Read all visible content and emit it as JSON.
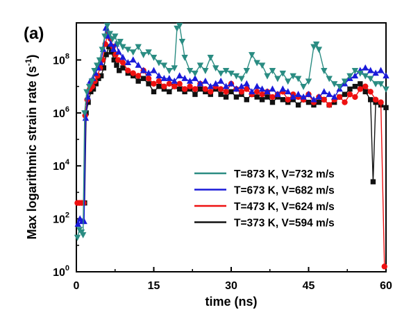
{
  "panel_label": "(a)",
  "chart_data": {
    "type": "scatter",
    "title": "",
    "xlabel": "time (ns)",
    "ylabel_main": "Max logarithmic  strain rate (s",
    "ylabel_sup": "-1",
    "ylabel_close": ")",
    "xlim": [
      0,
      60
    ],
    "ylim_log10": [
      0,
      9.4
    ],
    "y_scale": "log",
    "x_ticks": [
      0,
      15,
      30,
      45,
      60
    ],
    "x_tick_labels": [
      "0",
      "15",
      "30",
      "45",
      "60"
    ],
    "y_ticks": [
      0,
      2,
      4,
      6,
      8
    ],
    "y_tick_labels": [
      {
        "base": "10",
        "exp": "0"
      },
      {
        "base": "10",
        "exp": "2"
      },
      {
        "base": "10",
        "exp": "4"
      },
      {
        "base": "10",
        "exp": "6"
      },
      {
        "base": "10",
        "exp": "8"
      }
    ],
    "legend_position": "bottom-right",
    "series": [
      {
        "name": "T=873 K, V=732 m/s",
        "color": "#2a8c82",
        "marker": "triangle-down",
        "x": [
          0.2,
          0.6,
          1.0,
          1.3,
          1.6,
          2.0,
          2.5,
          3.0,
          3.5,
          4.0,
          4.5,
          5.0,
          5.5,
          6.0,
          6.5,
          7.0,
          7.5,
          8.0,
          8.5,
          9.0,
          10,
          11,
          12,
          13,
          14,
          15,
          16,
          17,
          18,
          19,
          19.5,
          20,
          20.5,
          21,
          22,
          23,
          24,
          25,
          26,
          27,
          28,
          29,
          30,
          31,
          32,
          33,
          34,
          35,
          36,
          37,
          38,
          39,
          40,
          41,
          42,
          43,
          44,
          45,
          46,
          46.5,
          47,
          48,
          49,
          50,
          51,
          52,
          53,
          54,
          55,
          56,
          57,
          58,
          59,
          60
        ],
        "log10y": [
          1.3,
          1.6,
          1.5,
          1.4,
          6.0,
          6.8,
          7.0,
          7.2,
          7.6,
          7.8,
          8.0,
          8.4,
          8.9,
          9.3,
          9.0,
          8.8,
          8.9,
          8.6,
          8.7,
          8.5,
          8.4,
          8.3,
          8.5,
          8.2,
          8.3,
          8.1,
          7.9,
          7.8,
          7.6,
          7.7,
          9.2,
          9.3,
          8.7,
          8.1,
          7.6,
          7.5,
          7.8,
          7.6,
          8.1,
          7.7,
          7.5,
          7.6,
          7.5,
          7.4,
          7.3,
          7.6,
          8.2,
          7.9,
          7.8,
          7.4,
          7.6,
          7.3,
          7.5,
          7.2,
          7.4,
          7.3,
          7.0,
          7.2,
          8.5,
          8.6,
          8.4,
          7.6,
          7.3,
          7.1,
          7.0,
          7.2,
          7.4,
          7.6,
          7.5,
          7.4,
          7.3,
          7.1,
          7.1,
          6.9
        ]
      },
      {
        "name": "T=673 K, V=682 m/s",
        "color": "#1a1ad9",
        "marker": "triangle-up",
        "x": [
          0.3,
          0.7,
          1.1,
          1.5,
          1.8,
          2.2,
          2.7,
          3.2,
          3.7,
          4.2,
          4.7,
          5.2,
          5.7,
          6.2,
          6.7,
          7.2,
          7.7,
          8.2,
          9,
          10,
          11,
          12,
          13,
          14,
          15,
          16,
          17,
          18,
          19,
          20,
          21,
          22,
          23,
          24,
          25,
          26,
          27,
          28,
          29,
          30,
          31,
          32,
          33,
          34,
          35,
          36,
          37,
          38,
          39,
          40,
          41,
          42,
          43,
          44,
          45,
          46,
          47,
          48,
          49,
          50,
          51,
          52,
          53,
          54,
          55,
          56,
          57,
          58,
          59,
          60
        ],
        "log10y": [
          1.8,
          2.0,
          1.9,
          1.9,
          5.8,
          6.6,
          7.2,
          7.3,
          7.5,
          7.7,
          7.9,
          8.4,
          9.2,
          8.9,
          8.6,
          8.4,
          8.6,
          8.3,
          8.1,
          7.9,
          8.0,
          7.8,
          7.6,
          7.5,
          7.6,
          7.4,
          7.3,
          7.3,
          7.2,
          7.4,
          7.3,
          7.2,
          7.3,
          7.1,
          7.2,
          7.0,
          7.1,
          7.2,
          7.0,
          7.1,
          6.9,
          7.0,
          7.1,
          6.8,
          7.0,
          6.9,
          6.8,
          6.9,
          6.7,
          6.9,
          6.8,
          6.6,
          6.7,
          6.6,
          6.7,
          6.5,
          6.6,
          6.8,
          6.7,
          6.6,
          6.9,
          7.1,
          7.3,
          7.4,
          7.6,
          7.7,
          7.6,
          7.5,
          7.6,
          7.4
        ]
      },
      {
        "name": "T=473 K, V=624 m/s",
        "color": "#ee1111",
        "marker": "circle",
        "x": [
          0.2,
          0.6,
          1.0,
          1.4,
          1.7,
          2.1,
          2.6,
          3.1,
          3.6,
          4.1,
          4.6,
          5.1,
          5.6,
          6.1,
          6.6,
          7.1,
          7.6,
          8.1,
          9,
          10,
          11,
          12,
          13,
          14,
          15,
          16,
          17,
          18,
          19,
          20,
          21,
          22,
          23,
          24,
          25,
          26,
          27,
          28,
          29,
          30,
          31,
          32,
          33,
          34,
          35,
          36,
          37,
          38,
          39,
          40,
          41,
          42,
          43,
          44,
          45,
          46,
          47,
          48,
          49,
          50,
          51,
          52,
          53,
          54,
          55,
          56,
          57,
          58,
          59,
          59.7
        ],
        "log10y": [
          2.6,
          2.6,
          2.6,
          2.6,
          5.9,
          6.5,
          6.9,
          7.0,
          7.2,
          7.4,
          7.7,
          8.0,
          8.6,
          9.0,
          8.8,
          8.5,
          8.2,
          8.0,
          7.9,
          7.6,
          7.5,
          7.4,
          7.6,
          7.3,
          7.1,
          7.2,
          7.0,
          7.1,
          7.0,
          7.1,
          6.9,
          7.0,
          6.9,
          7.1,
          6.9,
          6.8,
          7.0,
          6.9,
          6.8,
          7.1,
          6.9,
          6.8,
          6.9,
          6.7,
          6.8,
          6.7,
          6.8,
          6.6,
          6.7,
          6.8,
          6.5,
          6.7,
          6.6,
          6.5,
          6.7,
          6.4,
          6.6,
          6.5,
          6.3,
          6.5,
          6.6,
          6.4,
          6.7,
          6.6,
          6.9,
          7.0,
          6.8,
          6.5,
          6.4,
          0.2
        ]
      },
      {
        "name": "T=373 K, V=594 m/s",
        "color": "#111111",
        "marker": "square",
        "x": [
          0.4,
          0.8,
          1.2,
          1.6,
          1.9,
          2.3,
          2.8,
          3.3,
          3.8,
          4.3,
          4.8,
          5.3,
          5.8,
          6.3,
          6.8,
          7.3,
          7.8,
          8.3,
          9,
          10,
          11,
          12,
          13,
          14,
          15,
          16,
          17,
          18,
          19,
          20,
          21,
          22,
          23,
          24,
          25,
          26,
          27,
          28,
          29,
          30,
          31,
          32,
          33,
          34,
          35,
          36,
          37,
          38,
          39,
          40,
          41,
          42,
          43,
          44,
          45,
          46,
          47,
          48,
          49,
          50,
          51,
          52,
          53,
          54,
          55,
          56,
          57,
          57.5,
          58,
          59,
          60
        ],
        "log10y": [
          2.6,
          2.6,
          2.6,
          2.6,
          6.0,
          6.4,
          6.8,
          6.9,
          7.1,
          7.3,
          7.4,
          7.7,
          8.2,
          8.5,
          8.3,
          8.0,
          7.8,
          7.6,
          7.7,
          7.5,
          7.4,
          7.2,
          7.3,
          7.1,
          6.8,
          7.0,
          6.9,
          6.8,
          7.0,
          6.9,
          6.8,
          6.9,
          6.7,
          6.9,
          6.8,
          6.7,
          6.9,
          6.7,
          6.6,
          6.8,
          6.6,
          6.7,
          6.5,
          6.7,
          6.6,
          6.5,
          6.6,
          6.4,
          6.6,
          6.5,
          6.4,
          6.5,
          6.3,
          6.5,
          6.4,
          6.3,
          6.4,
          6.5,
          6.3,
          6.4,
          6.6,
          6.7,
          6.9,
          7.0,
          7.1,
          6.8,
          6.5,
          3.4,
          6.4,
          6.3,
          6.2
        ]
      }
    ]
  }
}
